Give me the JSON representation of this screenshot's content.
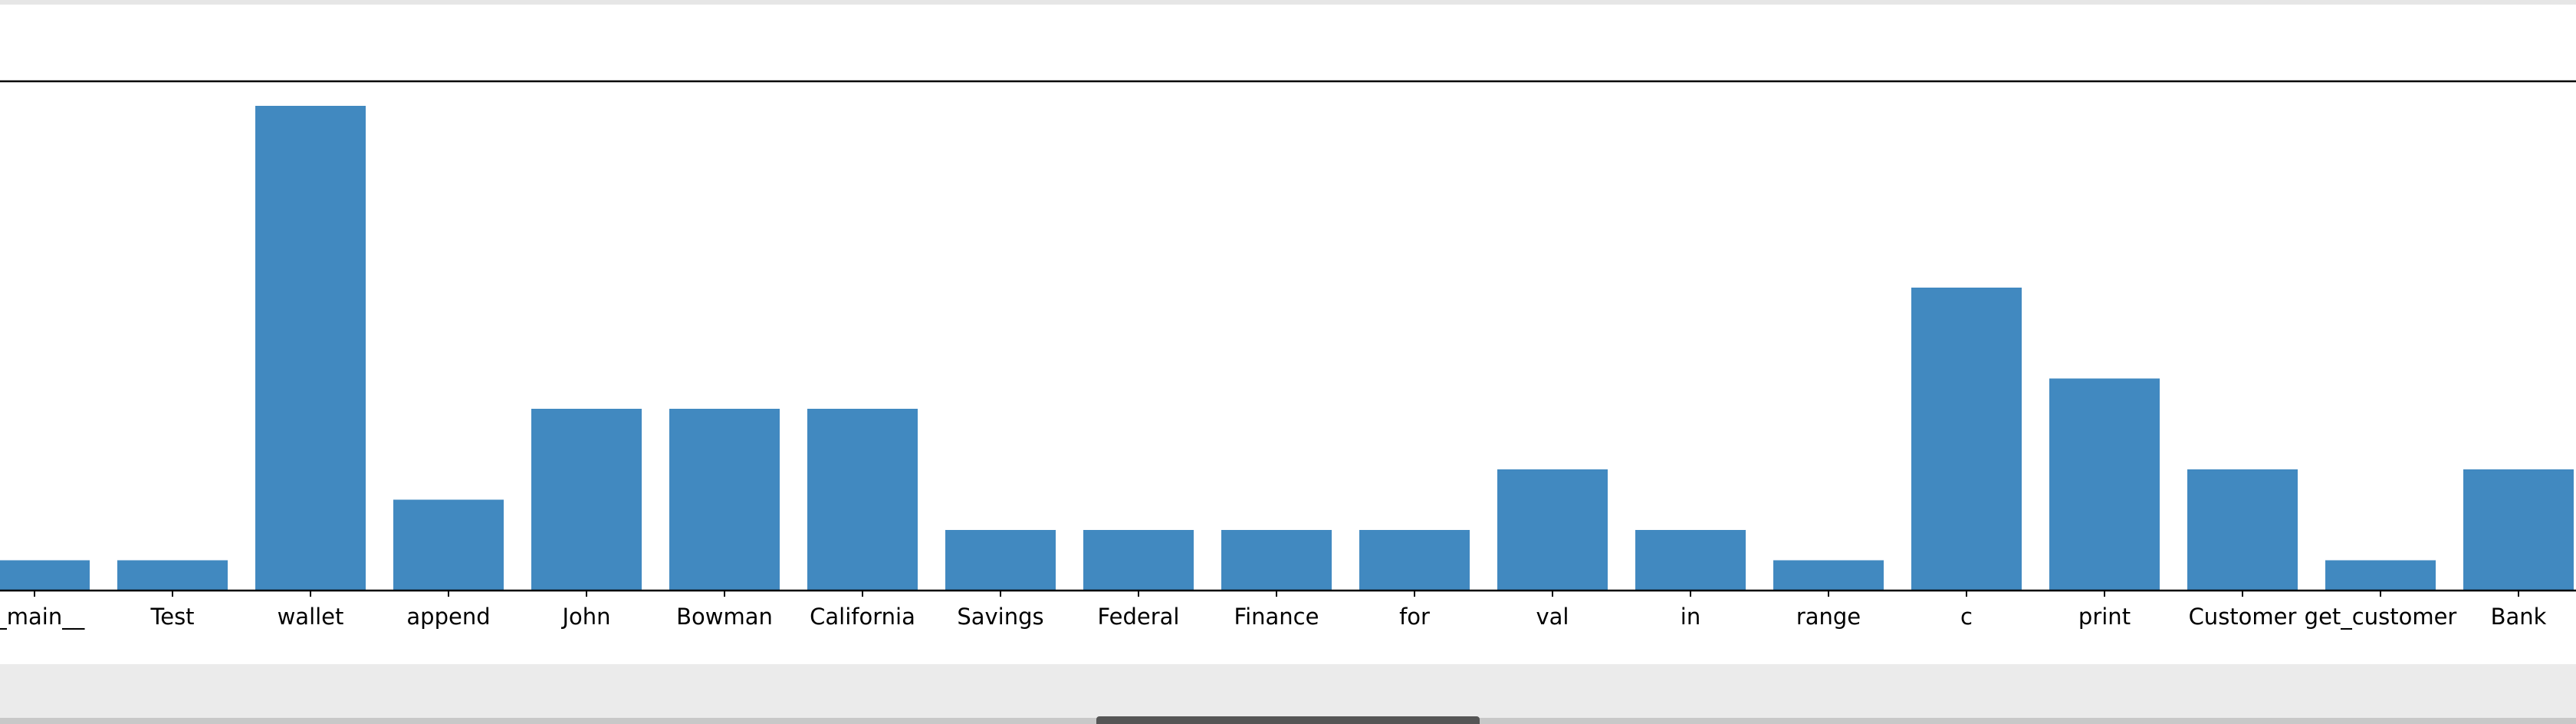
{
  "chart_data": {
    "type": "bar",
    "categories": [
      "__main__",
      "Test",
      "wallet",
      "append",
      "John",
      "Bowman",
      "California",
      "Savings",
      "Federal",
      "Finance",
      "for",
      "val",
      "in",
      "range",
      "c",
      "print",
      "Customer",
      "get_customer",
      "Bank"
    ],
    "values": [
      1,
      1,
      16,
      3,
      6,
      6,
      6,
      2,
      2,
      2,
      2,
      4,
      2,
      1,
      10,
      7,
      4,
      1,
      4
    ],
    "title": "",
    "xlabel": "",
    "ylabel": "",
    "ylim": [
      0,
      16.8
    ],
    "bar_color": "#4189c0",
    "grid": false,
    "legend": "none"
  }
}
